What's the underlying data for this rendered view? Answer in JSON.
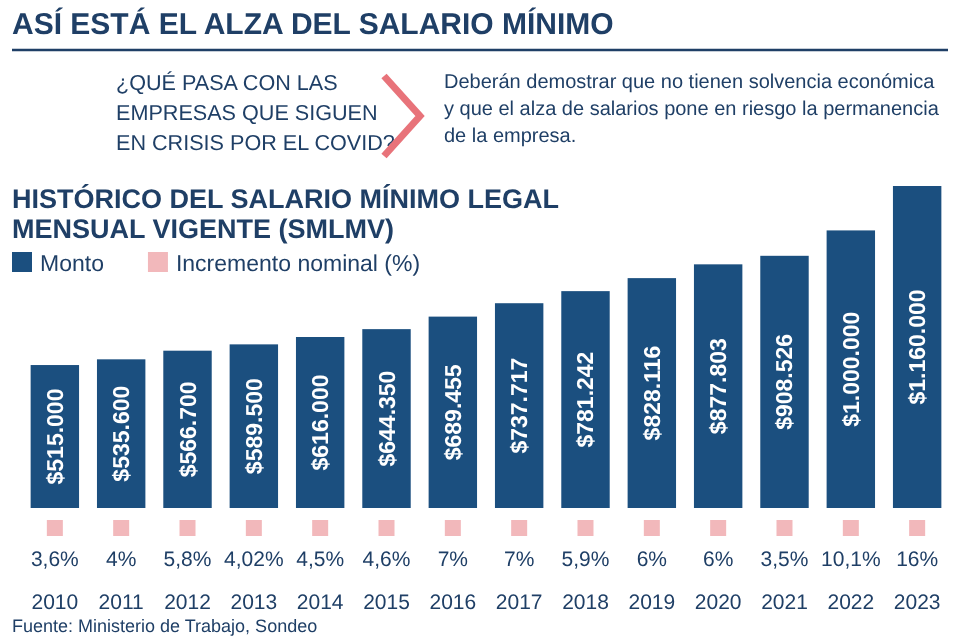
{
  "chart_data": {
    "type": "bar",
    "title": "ASÍ ESTÁ EL ALZA DEL SALARIO MÍNIMO",
    "subtitle": "¿QUÉ PASA CON LAS EMPRESAS QUE SIGUEN EN CRISIS POR EL COVID?",
    "annotations": [
      "Deberán demostrar que no tienen solvencia económica y que el alza de salarios pone en riesgo la permanencia de la empresa.",
      "HISTÓRICO DEL SALARIO MÍNIMO LEGAL MENSUAL VIGENTE (SMLMV)",
      "Fuente: Ministerio de Trabajo, Sondeo",
      "Incremento nominal (%)",
      "3,6%",
      "4%",
      "5,8%",
      "4,02%",
      "4,5%",
      "4,6%",
      "7%",
      "7%",
      "5,9%",
      "6%",
      "6%",
      "3,5%",
      "10,1%",
      "16%"
    ],
    "categories": [
      "2010",
      "2011",
      "2012",
      "2013",
      "2014",
      "2015",
      "2016",
      "2017",
      "2018",
      "2019",
      "2020",
      "2021",
      "2022",
      "2023"
    ],
    "ylim": [
      0,
      1160000
    ],
    "legend": "top left",
    "tick_labels": "x",
    "series": [
      {
        "name": "Monto",
        "color": "#1b4f7f",
        "values": [
          515000,
          535600,
          566700,
          589500,
          616000,
          644350,
          689455,
          737717,
          781242,
          828116,
          877803,
          908526,
          1000000,
          1160000
        ],
        "value_labels": [
          "$515.000",
          "$535.600",
          "$566.700",
          "$589.500",
          "$616.000",
          "$644.350",
          "$689.455",
          "$737.717",
          "$781.242",
          "$828.116",
          "$877.803",
          "$908.526",
          "$1.000.000",
          "$1.160.000"
        ]
      }
    ]
  }
}
